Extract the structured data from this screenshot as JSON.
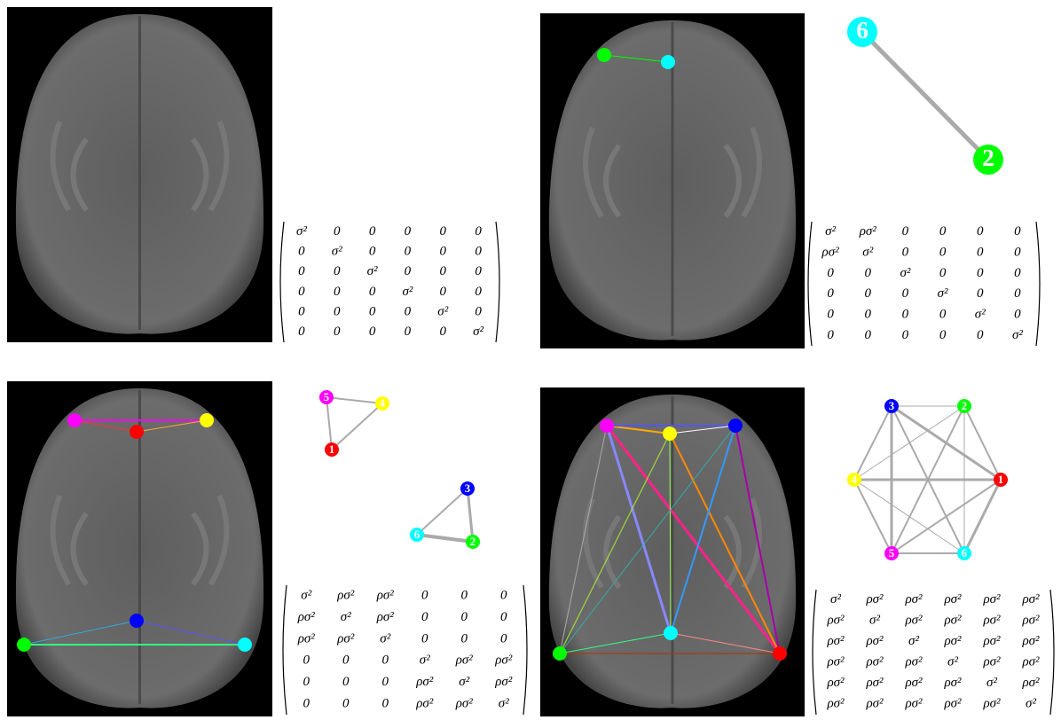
{
  "panels": [
    {
      "matrix": [
        [
          "σ²",
          "0",
          "0",
          "0",
          "0",
          "0"
        ],
        [
          "0",
          "σ²",
          "0",
          "0",
          "0",
          "0"
        ],
        [
          "0",
          "0",
          "σ²",
          "0",
          "0",
          "0"
        ],
        [
          "0",
          "0",
          "0",
          "σ²",
          "0",
          "0"
        ],
        [
          "0",
          "0",
          "0",
          "0",
          "σ²",
          "0"
        ],
        [
          "0",
          "0",
          "0",
          "0",
          "0",
          "σ²"
        ]
      ]
    },
    {
      "graph": {
        "nodes": [
          "6",
          "2"
        ]
      },
      "matrix": [
        [
          "σ²",
          "ρσ²",
          "0",
          "0",
          "0",
          "0"
        ],
        [
          "ρσ²",
          "σ²",
          "0",
          "0",
          "0",
          "0"
        ],
        [
          "0",
          "0",
          "σ²",
          "0",
          "0",
          "0"
        ],
        [
          "0",
          "0",
          "0",
          "σ²",
          "0",
          "0"
        ],
        [
          "0",
          "0",
          "0",
          "0",
          "σ²",
          "0"
        ],
        [
          "0",
          "0",
          "0",
          "0",
          "0",
          "σ²"
        ]
      ]
    },
    {
      "graph": {
        "nodes": [
          "5",
          "4",
          "1",
          "3",
          "6",
          "2"
        ]
      },
      "matrix": [
        [
          "σ²",
          "ρσ²",
          "ρσ²",
          "0",
          "0",
          "0"
        ],
        [
          "ρσ²",
          "σ²",
          "ρσ²",
          "0",
          "0",
          "0"
        ],
        [
          "ρσ²",
          "ρσ²",
          "σ²",
          "0",
          "0",
          "0"
        ],
        [
          "0",
          "0",
          "0",
          "σ²",
          "ρσ²",
          "ρσ²"
        ],
        [
          "0",
          "0",
          "0",
          "ρσ²",
          "σ²",
          "ρσ²"
        ],
        [
          "0",
          "0",
          "0",
          "ρσ²",
          "ρσ²",
          "σ²"
        ]
      ]
    },
    {
      "graph": {
        "nodes": [
          "3",
          "2",
          "1",
          "6",
          "5",
          "4"
        ]
      },
      "matrix": [
        [
          "σ²",
          "ρσ²",
          "ρσ²",
          "ρσ²",
          "ρσ²",
          "ρσ²"
        ],
        [
          "ρσ²",
          "σ²",
          "ρσ²",
          "ρσ²",
          "ρσ²",
          "ρσ²"
        ],
        [
          "ρσ²",
          "ρσ²",
          "σ²",
          "ρσ²",
          "ρσ²",
          "ρσ²"
        ],
        [
          "ρσ²",
          "ρσ²",
          "ρσ²",
          "σ²",
          "ρσ²",
          "ρσ²"
        ],
        [
          "ρσ²",
          "ρσ²",
          "ρσ²",
          "ρσ²",
          "σ²",
          "ρσ²"
        ],
        [
          "ρσ²",
          "ρσ²",
          "ρσ²",
          "ρσ²",
          "ρσ²",
          "σ²"
        ]
      ]
    }
  ]
}
